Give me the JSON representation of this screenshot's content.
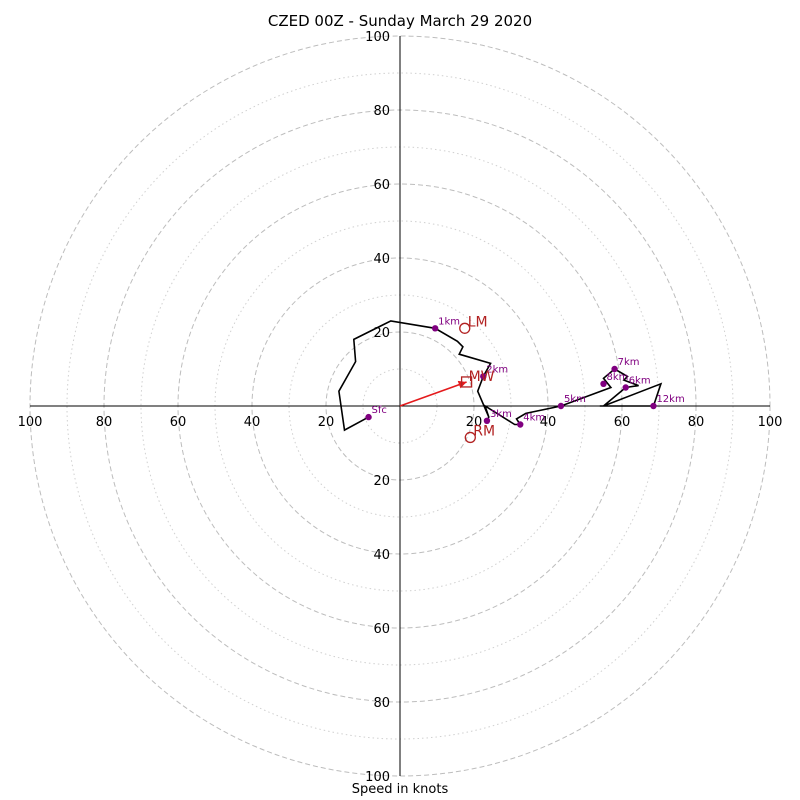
{
  "chart_data": {
    "type": "hodograph",
    "title": "CZED 00Z - Sunday March 29 2020",
    "xlabel": "Speed in knots",
    "rmax": 100,
    "ring_major": [
      20,
      40,
      60,
      80,
      100
    ],
    "ring_minor": [
      10,
      30,
      50,
      70,
      90
    ],
    "axis_ticks": [
      "20",
      "40",
      "60",
      "80",
      "100"
    ],
    "trace": [
      [
        -8.5,
        -3
      ],
      [
        -15,
        -6.5
      ],
      [
        -16.5,
        4
      ],
      [
        -12,
        12
      ],
      [
        -12.5,
        18
      ],
      [
        -2.5,
        23
      ],
      [
        9.5,
        21
      ],
      [
        15.5,
        17.5
      ],
      [
        17,
        16
      ],
      [
        16,
        14
      ],
      [
        24.5,
        11.5
      ],
      [
        22.5,
        8
      ],
      [
        21,
        4
      ],
      [
        24,
        -3
      ],
      [
        23.5,
        -4
      ],
      [
        24,
        -3
      ],
      [
        23,
        0
      ],
      [
        31,
        -5
      ],
      [
        32.5,
        -5
      ],
      [
        31.5,
        -3.5
      ],
      [
        34,
        -2
      ],
      [
        43.5,
        0
      ],
      [
        57,
        5
      ],
      [
        55,
        7.5
      ],
      [
        58,
        10
      ],
      [
        61.5,
        8
      ],
      [
        60.5,
        7
      ],
      [
        64.5,
        5.5
      ],
      [
        61,
        5
      ],
      [
        55,
        0
      ],
      [
        70.5,
        6
      ],
      [
        68.5,
        0
      ],
      [
        54,
        0
      ]
    ],
    "height_labels": [
      {
        "label": "Sfc",
        "u": -8.5,
        "v": -3
      },
      {
        "label": "1km",
        "u": 9.5,
        "v": 21
      },
      {
        "label": "2km",
        "u": 22.5,
        "v": 8
      },
      {
        "label": "3km",
        "u": 23.5,
        "v": -4
      },
      {
        "label": "4km",
        "u": 32.5,
        "v": -5
      },
      {
        "label": "5km",
        "u": 43.5,
        "v": 0
      },
      {
        "label": "6km",
        "u": 61,
        "v": 5
      },
      {
        "label": "7km",
        "u": 58,
        "v": 10
      },
      {
        "label": "8km",
        "u": 55,
        "v": 6
      },
      {
        "label": "12km",
        "u": 68.5,
        "v": 0
      }
    ],
    "storm_motion": {
      "lm": {
        "label": "LM",
        "u": 17.5,
        "v": 21
      },
      "rm": {
        "label": "RM",
        "u": 19,
        "v": -8.5
      },
      "mw": {
        "label": "MW",
        "u": 18,
        "v": 6.5
      }
    },
    "colors": {
      "trace": "#000000",
      "height_points": "#800080",
      "motion": "#b22222",
      "shear_vector": "#e41a1c",
      "rings": "#bdbdbd"
    }
  }
}
